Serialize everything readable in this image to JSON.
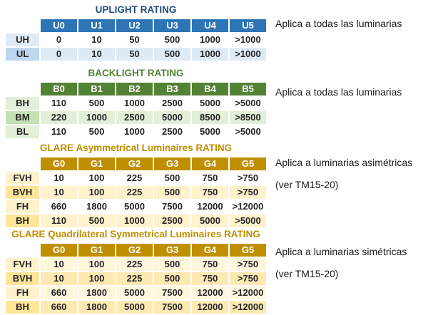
{
  "tables": [
    {
      "id": "uplight",
      "title": "UPLIGHT RATING",
      "colors": {
        "title": "#1F4E79",
        "header_bg": "#2E75B6",
        "header_text": "#FFFFFF"
      },
      "columns": [
        "U0",
        "U1",
        "U2",
        "U3",
        "U4",
        "U5"
      ],
      "rows": [
        {
          "label": "UH",
          "label_bg": "#DEEAF6",
          "cell_bg": "#FFFFFF",
          "values": [
            "0",
            "10",
            "50",
            "500",
            "1000",
            ">1000"
          ]
        },
        {
          "label": "UL",
          "label_bg": "#BDD7EE",
          "cell_bg": "#DEEAF6",
          "values": [
            "0",
            "10",
            "50",
            "500",
            "1000",
            ">1000"
          ]
        }
      ]
    },
    {
      "id": "backlight",
      "title": "BACKLIGHT RATING",
      "colors": {
        "title": "#538135",
        "header_bg": "#538135",
        "header_text": "#FFFFFF"
      },
      "columns": [
        "B0",
        "B1",
        "B2",
        "B3",
        "B4",
        "B5"
      ],
      "rows": [
        {
          "label": "BH",
          "label_bg": "#E2EFD9",
          "cell_bg": "#FFFFFF",
          "values": [
            "110",
            "500",
            "1000",
            "2500",
            "5000",
            ">5000"
          ]
        },
        {
          "label": "BM",
          "label_bg": "#C5E0B3",
          "cell_bg": "#E2EFD9",
          "values": [
            "220",
            "1000",
            "2500",
            "5000",
            "8500",
            ">8500"
          ]
        },
        {
          "label": "BL",
          "label_bg": "#E2EFD9",
          "cell_bg": "#FFFFFF",
          "values": [
            "110",
            "500",
            "1000",
            "2500",
            "5000",
            ">5000"
          ]
        }
      ]
    },
    {
      "id": "glare-asymmetrical",
      "title": "GLARE Asymmetrical Luminaires RATING",
      "colors": {
        "title": "#BF8F00",
        "header_bg": "#BF8F00",
        "header_text": "#FFFFFF"
      },
      "columns": [
        "G0",
        "G1",
        "G2",
        "G3",
        "G4",
        "G5"
      ],
      "rows": [
        {
          "label": "FVH",
          "label_bg": "#FFF2CC",
          "cell_bg": "#FFFFFF",
          "values": [
            "10",
            "100",
            "225",
            "500",
            "750",
            ">750"
          ]
        },
        {
          "label": "BVH",
          "label_bg": "#FFE599",
          "cell_bg": "#FFF2CC",
          "values": [
            "10",
            "100",
            "225",
            "500",
            "750",
            ">750"
          ]
        },
        {
          "label": "FH",
          "label_bg": "#FFF2CC",
          "cell_bg": "#FFFFFF",
          "values": [
            "660",
            "1800",
            "5000",
            "7500",
            "12000",
            ">12000"
          ]
        },
        {
          "label": "BH",
          "label_bg": "#FFE599",
          "cell_bg": "#FFF2CC",
          "values": [
            "110",
            "500",
            "1000",
            "2500",
            "5000",
            ">5000"
          ]
        }
      ]
    },
    {
      "id": "glare-quadrilateral-symmetrical",
      "title": "GLARE Quadrilateral Symmetrical Luminaires RATING",
      "colors": {
        "title": "#BF8F00",
        "header_bg": "#BF8F00",
        "header_text": "#FFFFFF"
      },
      "columns": [
        "G0",
        "G1",
        "G2",
        "G3",
        "G4",
        "G5"
      ],
      "rows": [
        {
          "label": "FVH",
          "label_bg": "#FFF2CC",
          "cell_bg": "#FFF6DE",
          "values": [
            "10",
            "100",
            "225",
            "500",
            "750",
            ">750"
          ]
        },
        {
          "label": "BVH",
          "label_bg": "#FFE599",
          "cell_bg": "#FFE9B3",
          "values": [
            "10",
            "100",
            "225",
            "500",
            "750",
            ">750"
          ]
        },
        {
          "label": "FH",
          "label_bg": "#FFF2CC",
          "cell_bg": "#FFF6DE",
          "values": [
            "660",
            "1800",
            "5000",
            "7500",
            "12000",
            ">12000"
          ]
        },
        {
          "label": "BH",
          "label_bg": "#FFE599",
          "cell_bg": "#FFE9B3",
          "values": [
            "660",
            "1800",
            "5000",
            "7500",
            "12000",
            ">12000"
          ]
        }
      ]
    }
  ],
  "annotations": [
    {
      "id": "uplight-note",
      "lines": [
        "Aplica a todas las luminarias"
      ]
    },
    {
      "id": "backlight-note",
      "lines": [
        "Aplica a todas las luminarias"
      ]
    },
    {
      "id": "glare-asymmetrical-note",
      "lines": [
        "Aplica a luminarias asimétricas",
        "(ver TM15-20)"
      ]
    },
    {
      "id": "glare-symmetrical-note",
      "lines": [
        "Aplica a luminarias simétricas",
        "(ver TM15-20)"
      ]
    }
  ]
}
